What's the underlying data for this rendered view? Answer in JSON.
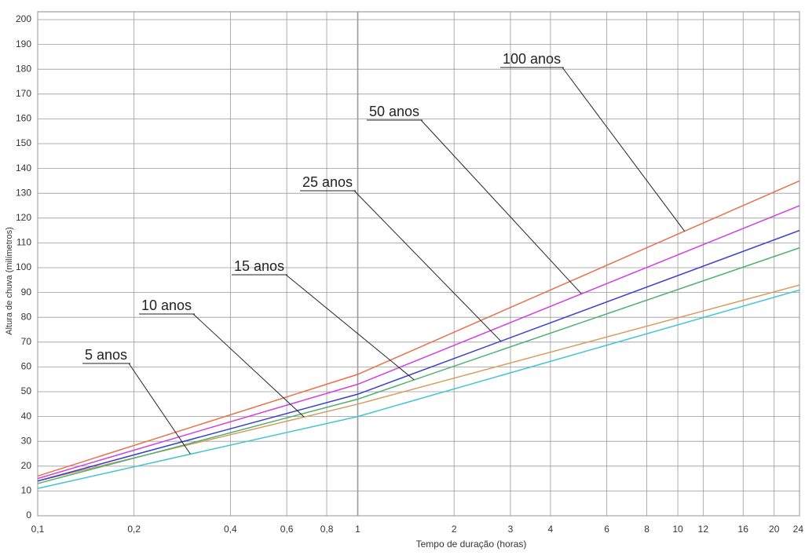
{
  "chart_data": {
    "type": "line",
    "xlabel": "Tempo de duração (horas)",
    "ylabel": "Altura de chuva (milímetros)",
    "x": [
      0.1,
      1,
      24
    ],
    "xlog": true,
    "grid": true,
    "xlim": [
      0.1,
      24
    ],
    "ylim": [
      0,
      200
    ],
    "xticks": [
      {
        "value": 0.1,
        "label": "0,1"
      },
      {
        "value": 0.2,
        "label": "0,2"
      },
      {
        "value": 0.4,
        "label": "0,4"
      },
      {
        "value": 0.6,
        "label": "0,6"
      },
      {
        "value": 0.8,
        "label": "0,8"
      },
      1,
      2,
      3,
      4,
      6,
      8,
      10,
      12,
      16,
      20,
      24
    ],
    "yticks": [
      0,
      10,
      20,
      30,
      40,
      50,
      60,
      70,
      80,
      90,
      100,
      110,
      120,
      130,
      140,
      150,
      160,
      170,
      180,
      190,
      200
    ],
    "series": [
      {
        "name": "5 anos",
        "color": "#40c4d4",
        "values": [
          11,
          40,
          91
        ]
      },
      {
        "name": "10 anos",
        "color": "#d89a5a",
        "values": [
          14,
          45,
          93
        ]
      },
      {
        "name": "15 anos",
        "color": "#4cb070",
        "values": [
          13,
          47,
          108
        ]
      },
      {
        "name": "25 anos",
        "color": "#3c3cd0",
        "values": [
          14,
          49,
          115
        ]
      },
      {
        "name": "50 anos",
        "color": "#d040e0",
        "values": [
          15,
          53,
          125
        ]
      },
      {
        "name": "100 anos",
        "color": "#e8704a",
        "values": [
          16,
          57,
          135
        ]
      }
    ]
  }
}
